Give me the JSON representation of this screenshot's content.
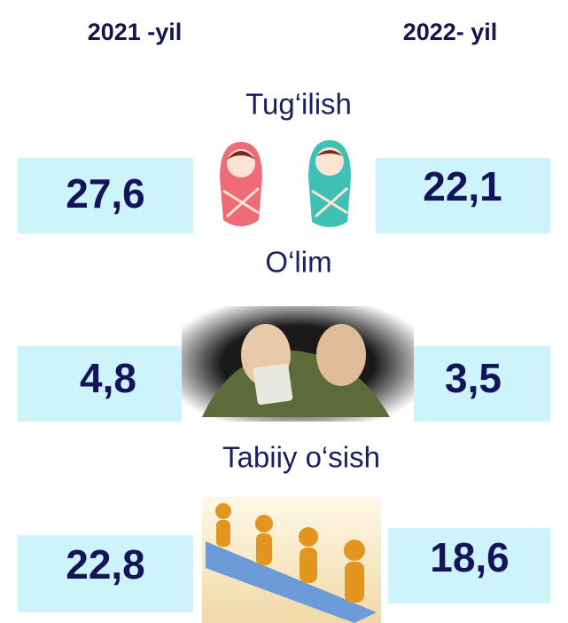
{
  "header": {
    "left": "2021 -yil",
    "right": "2022- yil"
  },
  "sections": [
    {
      "title": "Tug‘ilish",
      "left": "27,6",
      "right": "22,1"
    },
    {
      "title": "O‘lim",
      "left": "4,8",
      "right": "3,5"
    },
    {
      "title": "Tabiiy o‘sish",
      "left": "22,8",
      "right": "18,6"
    }
  ]
}
